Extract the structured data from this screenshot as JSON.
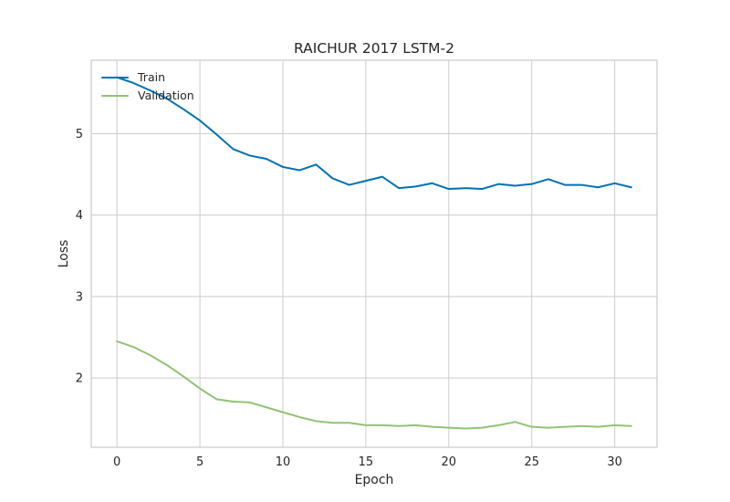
{
  "chart_data": {
    "type": "line",
    "title": "RAICHUR 2017 LSTM-2",
    "xlabel": "Epoch",
    "ylabel": "Loss",
    "xlim": [
      -1.55,
      32.55
    ],
    "ylim": [
      1.15,
      5.9
    ],
    "xticks": [
      0,
      5,
      10,
      15,
      20,
      25,
      30
    ],
    "yticks": [
      2,
      3,
      4,
      5
    ],
    "grid": true,
    "legend_position": "top-left",
    "x": [
      0,
      1,
      2,
      3,
      4,
      5,
      6,
      7,
      8,
      9,
      10,
      11,
      12,
      13,
      14,
      15,
      16,
      17,
      18,
      19,
      20,
      21,
      22,
      23,
      24,
      25,
      26,
      27,
      28,
      29,
      30,
      31
    ],
    "series": [
      {
        "name": "Train",
        "color": "#0072b2",
        "values": [
          5.69,
          5.62,
          5.53,
          5.43,
          5.3,
          5.16,
          4.99,
          4.81,
          4.73,
          4.69,
          4.59,
          4.55,
          4.62,
          4.45,
          4.37,
          4.42,
          4.47,
          4.33,
          4.35,
          4.39,
          4.32,
          4.33,
          4.32,
          4.38,
          4.36,
          4.38,
          4.44,
          4.37,
          4.37,
          4.34,
          4.39,
          4.34
        ]
      },
      {
        "name": "Validation",
        "color": "#91c376",
        "values": [
          2.45,
          2.38,
          2.28,
          2.16,
          2.02,
          1.87,
          1.74,
          1.71,
          1.7,
          1.64,
          1.58,
          1.52,
          1.47,
          1.45,
          1.45,
          1.42,
          1.42,
          1.41,
          1.42,
          1.4,
          1.39,
          1.38,
          1.39,
          1.42,
          1.46,
          1.4,
          1.39,
          1.4,
          1.41,
          1.4,
          1.42,
          1.41
        ]
      }
    ]
  }
}
